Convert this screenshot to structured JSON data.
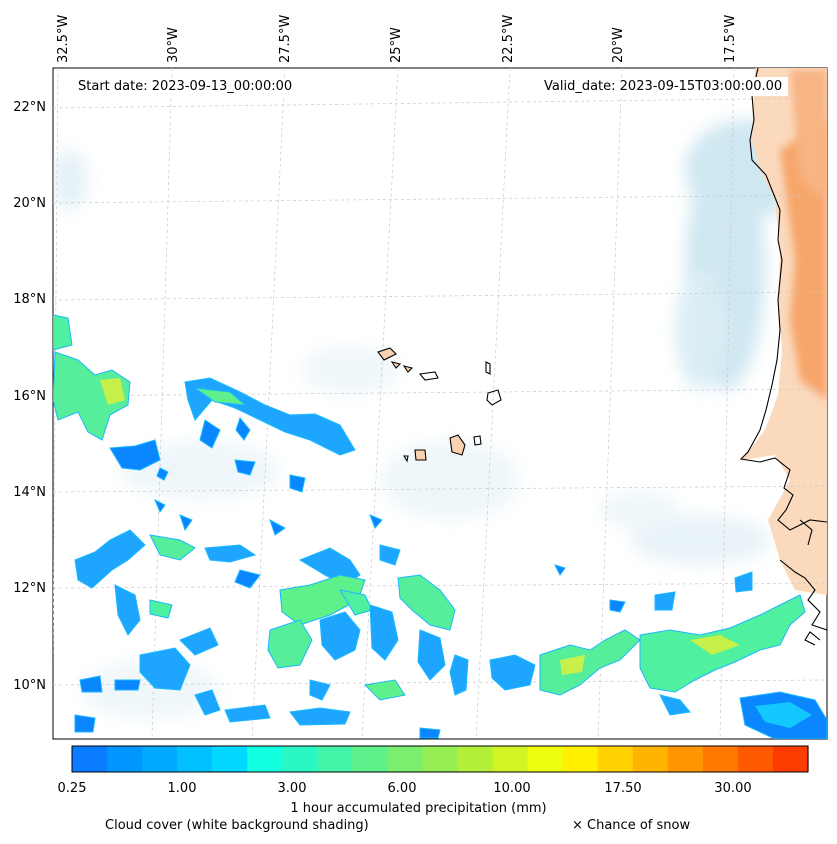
{
  "header": {
    "start_date": "Start date: 2023-09-13_00:00:00",
    "valid_date": "Valid_date: 2023-09-15T03:00:00.00"
  },
  "axes": {
    "lon_labels": [
      "32.5°W",
      "30°W",
      "27.5°W",
      "25°W",
      "22.5°W",
      "20°W",
      "17.5°W"
    ],
    "lat_labels": [
      "22°N",
      "20°N",
      "18°N",
      "16°N",
      "14°N",
      "12°N",
      "10°N"
    ]
  },
  "colorbar": {
    "title": "1 hour accumulated precipitation (mm)",
    "tick_labels": [
      "0.25",
      "1.00",
      "3.00",
      "6.00",
      "10.00",
      "17.50",
      "30.00"
    ],
    "colors": [
      "#0a7cff",
      "#0096ff",
      "#00aaff",
      "#00c0ff",
      "#00d8ff",
      "#12ffe0",
      "#2af8c4",
      "#44f4a8",
      "#5ef08a",
      "#7aee6e",
      "#96ee54",
      "#b4f03a",
      "#d2f422",
      "#eefc10",
      "#fff000",
      "#ffd200",
      "#ffb400",
      "#ff9600",
      "#ff7800",
      "#ff5a00",
      "#ff3c00"
    ]
  },
  "legend": {
    "cloud_cover": "Cloud cover (white background shading)",
    "snow": "× Chance of snow"
  },
  "colors": {
    "precip_low": "#0a86ff",
    "precip_mid": "#4ff0a0",
    "precip_high": "#d8f040",
    "cloud_shade": "#a8d4e6",
    "land_warm": "#f6a66a",
    "coastline": "#000000",
    "gridline": "#c8c8c8"
  }
}
